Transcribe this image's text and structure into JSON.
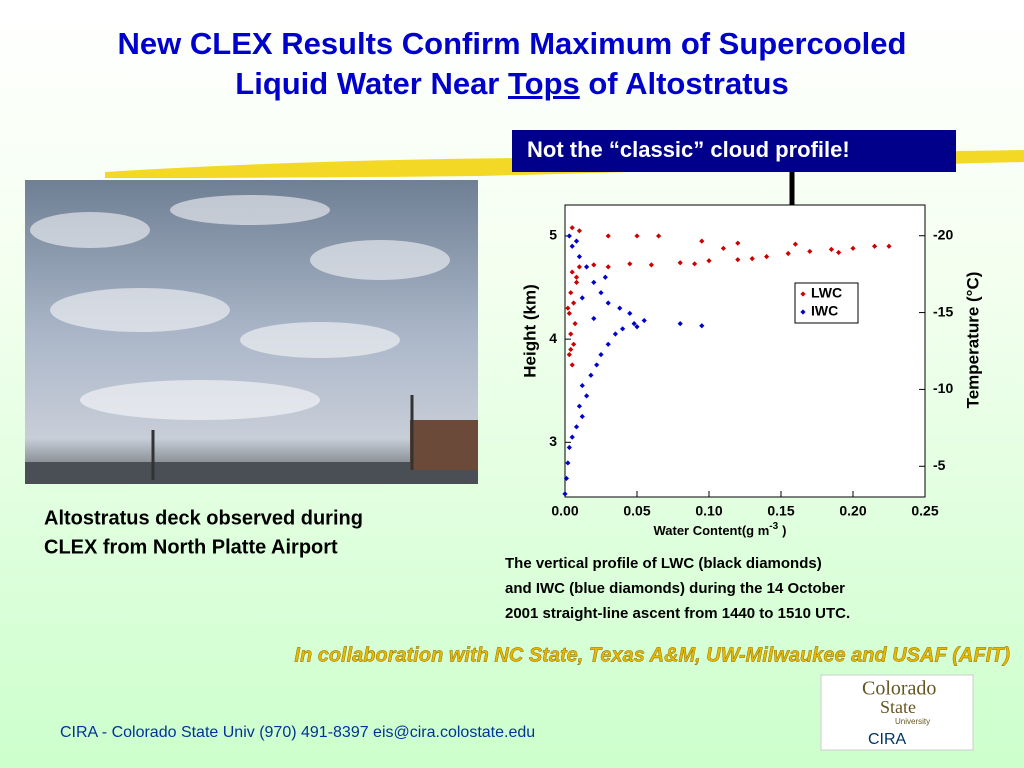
{
  "header": {
    "line1": "New CLEX Results Confirm Maximum of Supercooled",
    "line2_start": "Liquid Water Near",
    "line2_emphasis": "Tops",
    "line2_end": "of Altostratus"
  },
  "callout": "Not the “classic” cloud profile!",
  "photo_caption": [
    "Altostratus deck observed during",
    "CLEX from North Platte Airport"
  ],
  "chart_data": {
    "type": "scatter",
    "xlabel": "Water Content(g m",
    "xlabel_sup": "-3",
    "xlabel_end": ")",
    "ylabel": "Height (km)",
    "y2label": "Temperature (°C)",
    "xlim": [
      0,
      0.25
    ],
    "xticks": [
      {
        "value": 0,
        "label": "0.00"
      },
      {
        "value": 0.05,
        "label": "0.05"
      },
      {
        "value": 0.1,
        "label": "0.10"
      },
      {
        "value": 0.15,
        "label": "0.15"
      },
      {
        "value": 0.2,
        "label": "0.20"
      },
      {
        "value": 0.25,
        "label": "0.25"
      }
    ],
    "ylim": [
      2.47,
      5.3
    ],
    "yticks": [
      3,
      4,
      5
    ],
    "y2lim": [
      -3,
      -22
    ],
    "y2ticks": [
      -20,
      -15,
      -10,
      -5
    ],
    "legend": "right",
    "series": [
      {
        "name": "LWC",
        "color": "#cc0000",
        "x": [
          0.005,
          0.003,
          0.006,
          0.004,
          0.007,
          0.003,
          0.006,
          0.004,
          0.008,
          0.005,
          0.01,
          0.02,
          0.03,
          0.045,
          0.06,
          0.08,
          0.1,
          0.12,
          0.14,
          0.155,
          0.17,
          0.185,
          0.2,
          0.215,
          0.225,
          0.19,
          0.13,
          0.09,
          0.005,
          0.01,
          0.03,
          0.05,
          0.065,
          0.095,
          0.12,
          0.16,
          0.11,
          0.004,
          0.002,
          0.008
        ],
        "values": [
          3.75,
          3.85,
          3.95,
          4.05,
          4.15,
          4.25,
          4.35,
          4.45,
          4.55,
          4.65,
          4.7,
          4.72,
          4.7,
          4.73,
          4.72,
          4.74,
          4.76,
          4.77,
          4.8,
          4.83,
          4.85,
          4.87,
          4.88,
          4.9,
          4.9,
          4.84,
          4.78,
          4.73,
          5.08,
          5.05,
          5.0,
          5.0,
          5.0,
          4.95,
          4.93,
          4.92,
          4.88,
          3.9,
          4.3,
          4.6
        ]
      },
      {
        "name": "IWC",
        "color": "#0000cc",
        "x": [
          0.0,
          0.001,
          0.002,
          0.003,
          0.005,
          0.008,
          0.012,
          0.01,
          0.015,
          0.012,
          0.018,
          0.022,
          0.025,
          0.03,
          0.035,
          0.04,
          0.048,
          0.055,
          0.08,
          0.095,
          0.045,
          0.03,
          0.025,
          0.02,
          0.028,
          0.015,
          0.01,
          0.005,
          0.003,
          0.008,
          0.038,
          0.05,
          0.02,
          0.012
        ],
        "values": [
          2.5,
          2.65,
          2.8,
          2.95,
          3.05,
          3.15,
          3.25,
          3.35,
          3.45,
          3.55,
          3.65,
          3.75,
          3.85,
          3.95,
          4.05,
          4.1,
          4.15,
          4.18,
          4.15,
          4.13,
          4.25,
          4.35,
          4.45,
          4.55,
          4.6,
          4.7,
          4.8,
          4.9,
          5.0,
          4.95,
          4.3,
          4.12,
          4.2,
          4.4
        ]
      }
    ]
  },
  "chart_caption": [
    "The vertical profile of LWC (black diamonds)",
    "and IWC (blue diamonds) during the 14 October",
    "2001 straight-line ascent from 1440 to 1510 UTC."
  ],
  "collaboration": "In collaboration with NC State, Texas A&M, UW-Milwaukee and USAF (AFIT)",
  "footer": "CIRA - Colorado State Univ (970) 491-8397   eis@cira.colostate.edu",
  "logo": {
    "line1": "Colorado",
    "line2": "State",
    "line3": "University",
    "line4": "CIRA"
  }
}
